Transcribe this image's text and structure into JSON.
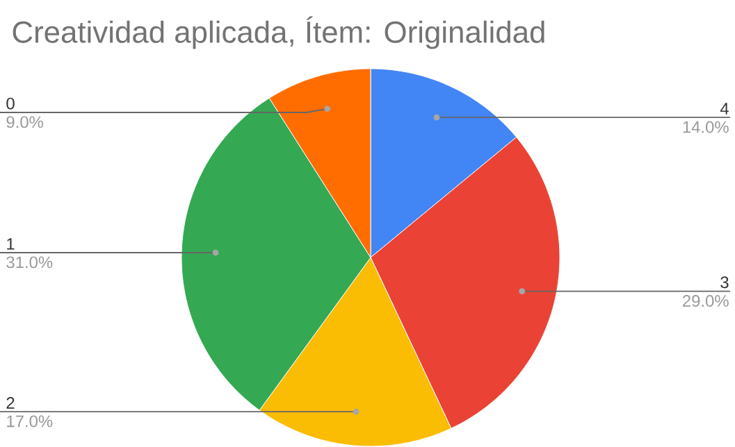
{
  "chart_data": {
    "type": "pie",
    "title": "Creatividad aplicada, Ítem: Originalidad",
    "categories": [
      "4",
      "3",
      "2",
      "1",
      "0"
    ],
    "values": [
      14,
      29,
      17,
      31,
      9
    ],
    "colors": [
      "#4285f4",
      "#ea4335",
      "#fbbc04",
      "#34a853",
      "#ff6d01"
    ],
    "value_labels": [
      "14.0%",
      "29.0%",
      "17.0%",
      "31.0%",
      "9.0%"
    ]
  }
}
